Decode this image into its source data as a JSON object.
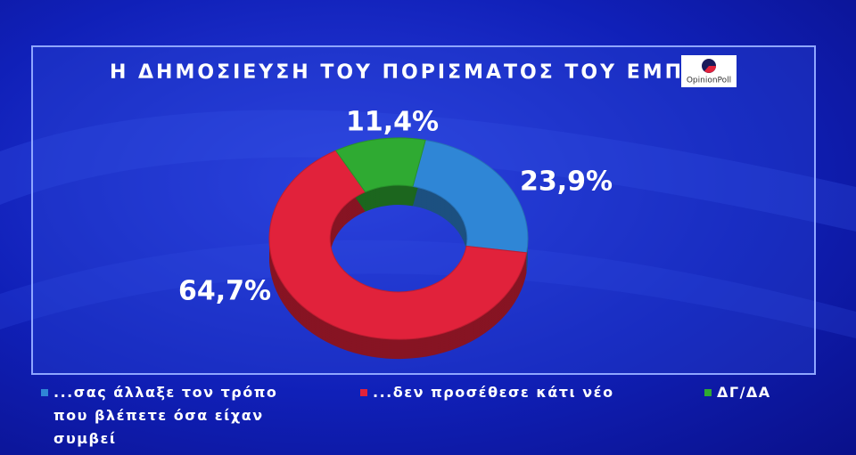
{
  "chart_data": {
    "type": "pie",
    "title": "Η ΔΗΜΟΣΙΕΥΣΗ ΤΟΥ ΠΟΡΙΣΜΑΤΟΣ ΤΟΥ ΕΜΠ",
    "source": "OpinionPoll",
    "categories": [
      "...σας άλλαξε τον τρόπο που βλέπετε όσα είχαν συμβεί",
      "...δεν προσέθεσε κάτι νέο",
      "ΔΓ/ΔΑ"
    ],
    "values": [
      23.9,
      64.7,
      11.4
    ],
    "value_labels": [
      "23,9%",
      "64,7%",
      "11,4%"
    ],
    "colors": [
      "#2f86d6",
      "#e1223b",
      "#2faa32"
    ],
    "donut": true
  }
}
